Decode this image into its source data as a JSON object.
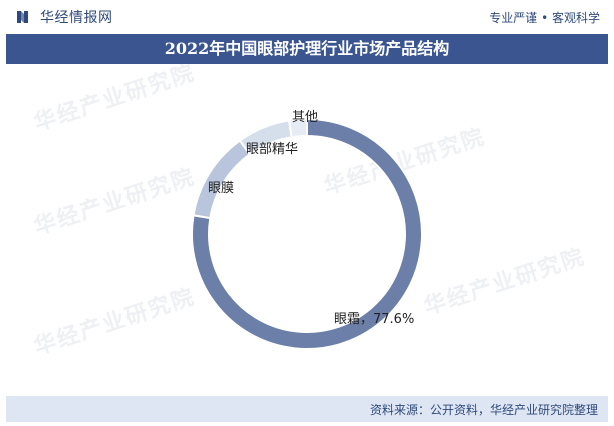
{
  "header": {
    "brand": "华经情报网",
    "slogan": "专业严谨 • 客观科学"
  },
  "title": "2022年中国眼部护理行业市场产品结构",
  "footer": {
    "source": "资料来源：公开资料，华经产业研究院整理"
  },
  "watermark": "华经产业研究院",
  "colors": {
    "title_bg": "#3a5590",
    "footer_bg": "#dfe6f3",
    "slice_main": "#6c7fa8",
    "slice_secondary": "#b9c5dc",
    "slice_minor": "#d5deeb",
    "slice_other": "#e6ecf5"
  },
  "chart_data": {
    "type": "pie",
    "donut": true,
    "labels": [
      "眼霜",
      "眼膜",
      "眼部精华",
      "其他"
    ],
    "values": [
      77.6,
      12.5,
      7.4,
      2.5
    ],
    "display_labels": [
      "眼霜，77.6%",
      "眼膜",
      "眼部精华",
      "其他"
    ]
  }
}
